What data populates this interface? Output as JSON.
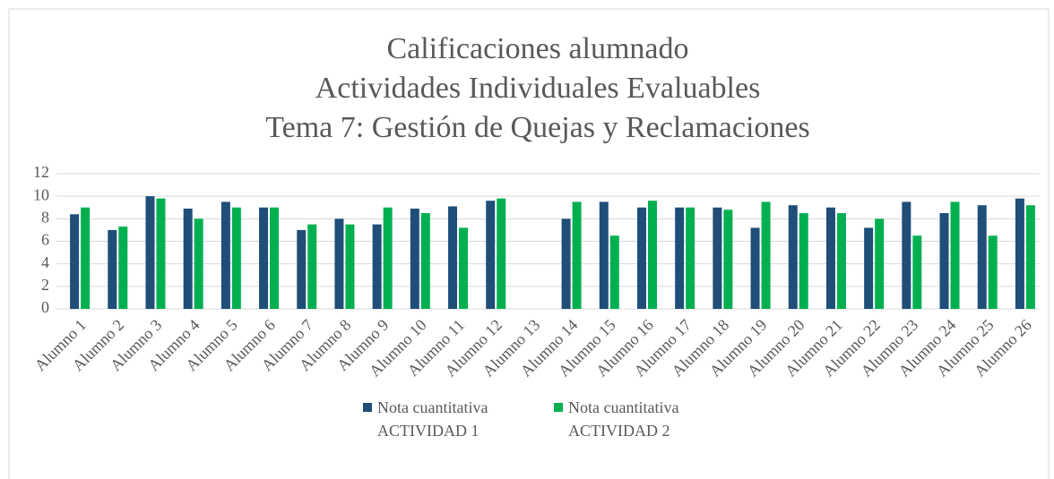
{
  "chart_data": {
    "type": "bar",
    "title": [
      "Calificaciones alumnado",
      "Actividades Individuales Evaluables",
      "Tema 7: Gestión de Quejas y Reclamaciones"
    ],
    "categories": [
      "Alumno 1",
      "Alumno 2",
      "Alumno 3",
      "Alumno 4",
      "Alumno 5",
      "Alumno 6",
      "Alumno 7",
      "Alumno 8",
      "Alumno 9",
      "Alumno 10",
      "Alumno 11",
      "Alumno 12",
      "Alumno 13",
      "Alumno 14",
      "Alumno 15",
      "Alumno 16",
      "Alumno 17",
      "Alumno 18",
      "Alumno 19",
      "Alumno 20",
      "Alumno 21",
      "Alumno 22",
      "Alumno 23",
      "Alumno 24",
      "Alumno 25",
      "Alumno 26"
    ],
    "series": [
      {
        "name": "Nota cuantitativa ACTIVIDAD 1",
        "color": "#1f4e79",
        "values": [
          8.4,
          7.0,
          10.0,
          8.9,
          9.5,
          9.0,
          7.0,
          8.0,
          7.5,
          8.9,
          9.1,
          9.6,
          null,
          8.0,
          9.5,
          9.0,
          9.0,
          9.0,
          7.2,
          9.2,
          9.0,
          7.2,
          9.5,
          8.5,
          9.2,
          9.8
        ]
      },
      {
        "name": "Nota cuantitativa ACTIVIDAD 2",
        "color": "#00b050",
        "values": [
          9.0,
          7.3,
          9.8,
          8.0,
          9.0,
          9.0,
          7.5,
          7.5,
          9.0,
          8.5,
          7.2,
          9.8,
          null,
          9.5,
          6.5,
          9.6,
          9.0,
          8.8,
          9.5,
          8.5,
          8.5,
          8.0,
          6.5,
          9.5,
          6.5,
          9.2
        ]
      }
    ],
    "ylim": [
      0,
      12
    ],
    "yticks": [
      0,
      2,
      4,
      6,
      8,
      10,
      12
    ],
    "grid": true,
    "legend": "bottom"
  }
}
